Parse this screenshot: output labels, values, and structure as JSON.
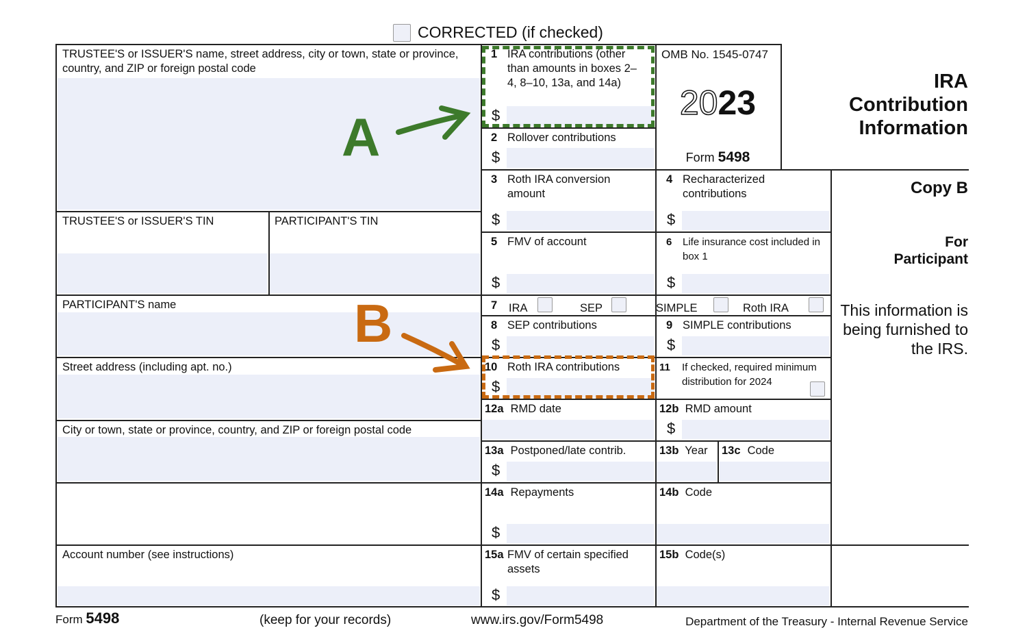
{
  "header": {
    "corrected": "CORRECTED (if checked)"
  },
  "left": {
    "trustee": "TRUSTEE'S or ISSUER'S name, street address, city or town, state or province, country, and ZIP or foreign postal code",
    "trustee_tin": "TRUSTEE'S or ISSUER'S TIN",
    "participant_tin": "PARTICIPANT'S TIN",
    "participant_name": "PARTICIPANT'S name",
    "street": "Street address (including apt. no.)",
    "city": "City or town, state or province, country, and ZIP or foreign postal code",
    "account": "Account number (see instructions)"
  },
  "boxes": {
    "b1": {
      "num": "1",
      "label": "IRA contributions (other than amounts in boxes 2–4, 8–10, 13a, and 14a)"
    },
    "b2": {
      "num": "2",
      "label": "Rollover contributions"
    },
    "b3": {
      "num": "3",
      "label": "Roth IRA conversion amount"
    },
    "b4": {
      "num": "4",
      "label": "Recharacterized contributions"
    },
    "b5": {
      "num": "5",
      "label": "FMV of account"
    },
    "b6": {
      "num": "6",
      "label": "Life insurance cost included in box 1"
    },
    "b7": {
      "num": "7",
      "ira": "IRA",
      "sep": "SEP",
      "simple": "SIMPLE",
      "roth": "Roth IRA"
    },
    "b8": {
      "num": "8",
      "label": "SEP contributions"
    },
    "b9": {
      "num": "9",
      "label": "SIMPLE contributions"
    },
    "b10": {
      "num": "10",
      "label": "Roth IRA contributions"
    },
    "b11": {
      "num": "11",
      "label": "If checked, required minimum distribution for 2024"
    },
    "b12a": {
      "num": "12a",
      "label": "RMD date"
    },
    "b12b": {
      "num": "12b",
      "label": "RMD amount"
    },
    "b13a": {
      "num": "13a",
      "label": "Postponed/late contrib."
    },
    "b13b": {
      "num": "13b",
      "label": "Year"
    },
    "b13c": {
      "num": "13c",
      "label": "Code"
    },
    "b14a": {
      "num": "14a",
      "label": "Repayments"
    },
    "b14b": {
      "num": "14b",
      "label": "Code"
    },
    "b15a": {
      "num": "15a",
      "label": "FMV of certain specified assets"
    },
    "b15b": {
      "num": "15b",
      "label": "Code(s)"
    },
    "dollar": "$"
  },
  "omb": {
    "number": "OMB No. 1545-0747",
    "year_outline": "20",
    "year_bold": "23",
    "form_word": "Form",
    "form_num": "5498"
  },
  "title": {
    "line1": "IRA",
    "line2": "Contribution",
    "line3": "Information"
  },
  "copy": {
    "copy": "Copy B",
    "for1": "For",
    "for2": "Participant",
    "info": "This information is being furnished to the IRS."
  },
  "footer": {
    "form_word": "Form",
    "form_num": "5498",
    "keep": "(keep for your records)",
    "url": "www.irs.gov/Form5498",
    "dept": "Department of the Treasury - Internal Revenue Service"
  },
  "annotations": {
    "a": "A",
    "b": "B",
    "a_color": "#3d7a2b",
    "b_color": "#c96a12"
  }
}
